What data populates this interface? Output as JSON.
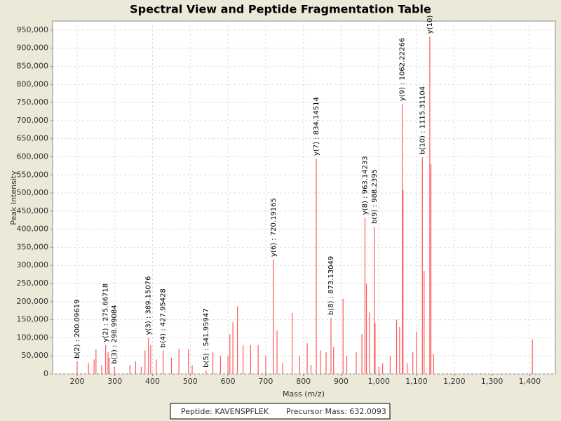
{
  "chart_data": {
    "type": "spectrum",
    "title": "Spectral View and Peptide Fragmentation Table",
    "x_label": "Mass (m/z)",
    "y_label": "Peak Intensity",
    "color": "#ff5a5a",
    "label_color": "#000000",
    "grid": true,
    "xlim": [
      135,
      1468
    ],
    "ylim": [
      0,
      975000
    ],
    "xticks": [
      200,
      300,
      400,
      500,
      600,
      700,
      800,
      900,
      {
        "value": 1000,
        "label": "1,000"
      },
      {
        "value": 1100,
        "label": "1,100"
      },
      {
        "value": 1200,
        "label": "1,200"
      },
      {
        "value": 1300,
        "label": "1,300"
      },
      {
        "value": 1400,
        "label": "1,400"
      }
    ],
    "yticks": [
      0,
      {
        "value": 50000,
        "label": "50,000"
      },
      {
        "value": 100000,
        "label": "100,000"
      },
      {
        "value": 150000,
        "label": "150,000"
      },
      {
        "value": 200000,
        "label": "200,000"
      },
      {
        "value": 250000,
        "label": "250,000"
      },
      {
        "value": 300000,
        "label": "300,000"
      },
      {
        "value": 350000,
        "label": "350,000"
      },
      {
        "value": 400000,
        "label": "400,000"
      },
      {
        "value": 450000,
        "label": "450,000"
      },
      {
        "value": 500000,
        "label": "500,000"
      },
      {
        "value": 550000,
        "label": "550,000"
      },
      {
        "value": 600000,
        "label": "600,000"
      },
      {
        "value": 650000,
        "label": "650,000"
      },
      {
        "value": 700000,
        "label": "700,000"
      },
      {
        "value": 750000,
        "label": "750,000"
      },
      {
        "value": 800000,
        "label": "800,000"
      },
      {
        "value": 850000,
        "label": "850,000"
      },
      {
        "value": 900000,
        "label": "900,000"
      },
      {
        "value": 950000,
        "label": "950,000"
      }
    ],
    "series": [
      {
        "x": [
          200.09619,
          275.66718,
          298.99084,
          389.15076,
          427.95428,
          541.95947,
          720.19165,
          834.14514,
          873.13049,
          963.14233,
          988.2395,
          1062.22266,
          1115.31104,
          1135
        ],
        "values": [
          35000,
          80000,
          20000,
          100000,
          65000,
          10000,
          316000,
          595000,
          155000,
          432000,
          407000,
          746000,
          599000,
          932000
        ],
        "labels": [
          "b(2) : 200.09619",
          "y(2) : 275.66718",
          "b(3) : 298.99084",
          "y(3) : 389.15076",
          "b(4) : 427.95428",
          "b(5) : 541.95947",
          "y(6) : 720.19165",
          "y(7) : 834.14514",
          "b(8) : 873.13049",
          "y(8) : 963.14233",
          "b(9) : 988.2395",
          "y(9) : 1062.22266",
          "b(10) : 1115.31104",
          "y(10)"
        ]
      },
      {
        "x": [
          230,
          245,
          250,
          265,
          282,
          285,
          340,
          355,
          370,
          380,
          395,
          410,
          450,
          470,
          495,
          505,
          560,
          580,
          600,
          605,
          613,
          625,
          640,
          660,
          680,
          700,
          730,
          745,
          770,
          790,
          810,
          820,
          845,
          860,
          880,
          905,
          915,
          940,
          955,
          967,
          975,
          990,
          1000,
          1010,
          1030,
          1047,
          1055,
          1064,
          1075,
          1090,
          1100,
          1120,
          1138,
          1145,
          1407
        ],
        "values": [
          30000,
          40000,
          68000,
          25000,
          60000,
          45000,
          25000,
          35000,
          20000,
          65000,
          80000,
          40000,
          45000,
          70000,
          68000,
          25000,
          60000,
          50000,
          50000,
          110000,
          143000,
          187000,
          80000,
          80000,
          80000,
          50000,
          120000,
          30000,
          168000,
          50000,
          85000,
          25000,
          65000,
          60000,
          75000,
          208000,
          50000,
          60000,
          110000,
          250000,
          170000,
          140000,
          20000,
          30000,
          50000,
          150000,
          130000,
          508000,
          30000,
          60000,
          117000,
          285000,
          580000,
          55000,
          96000
        ]
      }
    ],
    "footer": [
      "Peptide: KAVENSPFLEK",
      "Precursor Mass: 632.0093"
    ]
  }
}
